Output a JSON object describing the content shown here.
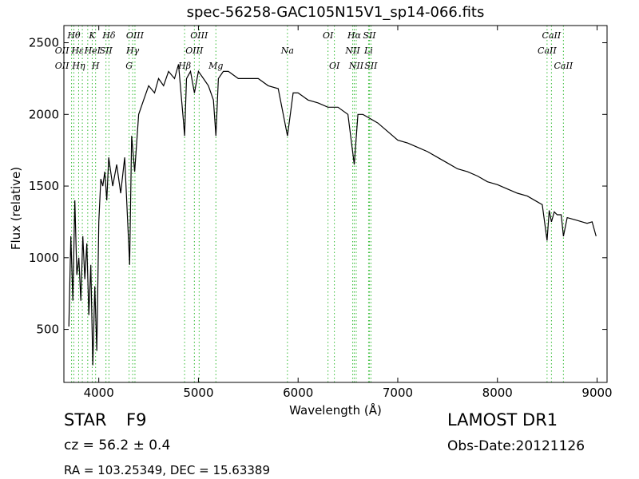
{
  "chart_data": {
    "type": "line",
    "title": "spec-56258-GAC105N15V1_sp14-066.fits",
    "xlabel": "Wavelength (Å)",
    "ylabel": "Flux (relative)",
    "xlim": [
      3650,
      9100
    ],
    "ylim": [
      130,
      2620
    ],
    "xticks": [
      4000,
      5000,
      6000,
      7000,
      8000,
      9000
    ],
    "yticks": [
      500,
      1000,
      1500,
      2000,
      2500
    ],
    "grid": false,
    "line_color": "#000000",
    "marker_color": "#33bb33",
    "series": [
      {
        "x": [
          3700,
          3720,
          3740,
          3760,
          3780,
          3800,
          3820,
          3840,
          3860,
          3880,
          3900,
          3920,
          3940,
          3960,
          3980,
          4000,
          4020,
          4040,
          4060,
          4080,
          4100,
          4140,
          4180,
          4220,
          4260,
          4300,
          4310,
          4330,
          4360,
          4400,
          4450,
          4500,
          4560,
          4600,
          4650,
          4700,
          4760,
          4800,
          4850,
          4861,
          4880,
          4920,
          4960,
          5000,
          5050,
          5100,
          5150,
          5175,
          5200,
          5250,
          5300,
          5400,
          5500,
          5600,
          5700,
          5800,
          5893,
          5950,
          6000,
          6100,
          6200,
          6300,
          6400,
          6500,
          6563,
          6600,
          6650,
          6700,
          6800,
          6900,
          7000,
          7100,
          7200,
          7300,
          7400,
          7500,
          7600,
          7700,
          7800,
          7900,
          8000,
          8100,
          8200,
          8300,
          8400,
          8450,
          8498,
          8520,
          8542,
          8570,
          8600,
          8640,
          8662,
          8700,
          8750,
          8800,
          8850,
          8900,
          8950,
          8990
        ],
        "y": [
          520,
          1150,
          700,
          1400,
          880,
          1000,
          700,
          1150,
          850,
          1100,
          600,
          950,
          250,
          800,
          350,
          1250,
          1550,
          1500,
          1600,
          1400,
          1700,
          1500,
          1650,
          1450,
          1700,
          1100,
          950,
          1850,
          1600,
          2000,
          2100,
          2200,
          2150,
          2250,
          2200,
          2300,
          2250,
          2350,
          1950,
          1850,
          2250,
          2300,
          2150,
          2300,
          2250,
          2200,
          2100,
          1850,
          2250,
          2300,
          2300,
          2250,
          2250,
          2250,
          2200,
          2180,
          1850,
          2150,
          2150,
          2100,
          2080,
          2050,
          2050,
          2000,
          1650,
          2000,
          2000,
          1980,
          1940,
          1880,
          1820,
          1800,
          1770,
          1740,
          1700,
          1660,
          1620,
          1600,
          1570,
          1530,
          1510,
          1480,
          1450,
          1430,
          1390,
          1370,
          1120,
          1330,
          1250,
          1320,
          1300,
          1300,
          1150,
          1280,
          1270,
          1260,
          1250,
          1240,
          1250,
          1150
        ]
      }
    ],
    "line_markers": [
      {
        "x": 3727,
        "label": "OII",
        "row": 1,
        "label_dx": -12
      },
      {
        "x": 3727,
        "label": "OII",
        "row": 2,
        "label_dx": -12
      },
      {
        "x": 3750,
        "label": "Hθ",
        "row": 0,
        "label_dx": 0
      },
      {
        "x": 3798,
        "label": "Hη",
        "row": 2,
        "label_dx": 0
      },
      {
        "x": 3835,
        "label": "Hε",
        "row": 1,
        "label_dx": -6
      },
      {
        "x": 3889,
        "label": "HeI",
        "row": 1,
        "label_dx": 6
      },
      {
        "x": 3934,
        "label": "K",
        "row": 0,
        "label_dx": 0
      },
      {
        "x": 3968,
        "label": "H",
        "row": 2,
        "label_dx": 0
      },
      {
        "x": 4072,
        "label": "SII",
        "row": 1,
        "label_dx": 0
      },
      {
        "x": 4102,
        "label": "Hδ",
        "row": 0,
        "label_dx": 0
      },
      {
        "x": 4304,
        "label": "G",
        "row": 2,
        "label_dx": 0
      },
      {
        "x": 4340,
        "label": "Hγ",
        "row": 1,
        "label_dx": 0
      },
      {
        "x": 4363,
        "label": "OIII",
        "row": 0,
        "label_dx": 0
      },
      {
        "x": 4861,
        "label": "Hβ",
        "row": 2,
        "label_dx": 0
      },
      {
        "x": 4959,
        "label": "OIII",
        "row": 1,
        "label_dx": 0
      },
      {
        "x": 5007,
        "label": "OIII",
        "row": 0,
        "label_dx": 0
      },
      {
        "x": 5175,
        "label": "Mg",
        "row": 2,
        "label_dx": 0
      },
      {
        "x": 5893,
        "label": "Na",
        "row": 1,
        "label_dx": 0
      },
      {
        "x": 6300,
        "label": "OI",
        "row": 0,
        "label_dx": 0
      },
      {
        "x": 6364,
        "label": "OI",
        "row": 2,
        "label_dx": 0
      },
      {
        "x": 6548,
        "label": "NII",
        "row": 1,
        "label_dx": 0
      },
      {
        "x": 6563,
        "label": "Hα",
        "row": 0,
        "label_dx": 0
      },
      {
        "x": 6583,
        "label": "NII",
        "row": 2,
        "label_dx": 0
      },
      {
        "x": 6707,
        "label": "Li",
        "row": 1,
        "label_dx": 0
      },
      {
        "x": 6716,
        "label": "SII",
        "row": 0,
        "label_dx": 0
      },
      {
        "x": 6731,
        "label": "SII",
        "row": 2,
        "label_dx": 0
      },
      {
        "x": 8498,
        "label": "CaII",
        "row": 1,
        "label_dx": 0
      },
      {
        "x": 8542,
        "label": "CaII",
        "row": 0,
        "label_dx": 0
      },
      {
        "x": 8662,
        "label": "CaII",
        "row": 2,
        "label_dx": 0
      }
    ]
  },
  "info": {
    "object_class": "STAR",
    "subclass": "F9",
    "survey": "LAMOST DR1",
    "cz": "cz = 56.2  ± 0.4",
    "obs_date": "Obs-Date:20121126",
    "coords": "RA = 103.25349, DEC = 15.63389"
  }
}
